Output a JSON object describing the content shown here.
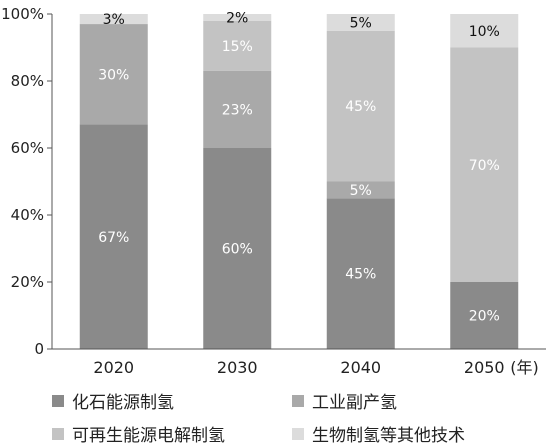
{
  "chart_data": {
    "type": "bar",
    "stacked": true,
    "categories": [
      "2020",
      "2030",
      "2040",
      "2050"
    ],
    "x_unit": "(年)",
    "y_ticks": [
      "0",
      "20%",
      "40%",
      "60%",
      "80%",
      "100%"
    ],
    "ylim": [
      0,
      100
    ],
    "grid": false,
    "legend_position": "bottom",
    "series": [
      {
        "name": "化石能源制氢",
        "color": "#8a8a8a",
        "text_color": "#ffffff",
        "values": [
          67,
          60,
          45,
          20
        ],
        "labels": [
          "67%",
          "60%",
          "45%",
          "20%"
        ]
      },
      {
        "name": "工业副产氢",
        "color": "#a9a9a9",
        "text_color": "#ffffff",
        "values": [
          30,
          23,
          5,
          0
        ],
        "labels": [
          "30%",
          "23%",
          "5%",
          ""
        ]
      },
      {
        "name": "可再生能源电解制氢",
        "color": "#c3c3c3",
        "text_color": "#ffffff",
        "values": [
          0,
          15,
          45,
          70
        ],
        "labels": [
          "",
          "15%",
          "45%",
          "70%"
        ]
      },
      {
        "name": "生物制氢等其他技术",
        "color": "#dcdcdc",
        "text_color": "#111111",
        "values": [
          3,
          2,
          5,
          10
        ],
        "labels": [
          "3%",
          "2%",
          "5%",
          "10%"
        ]
      }
    ]
  }
}
